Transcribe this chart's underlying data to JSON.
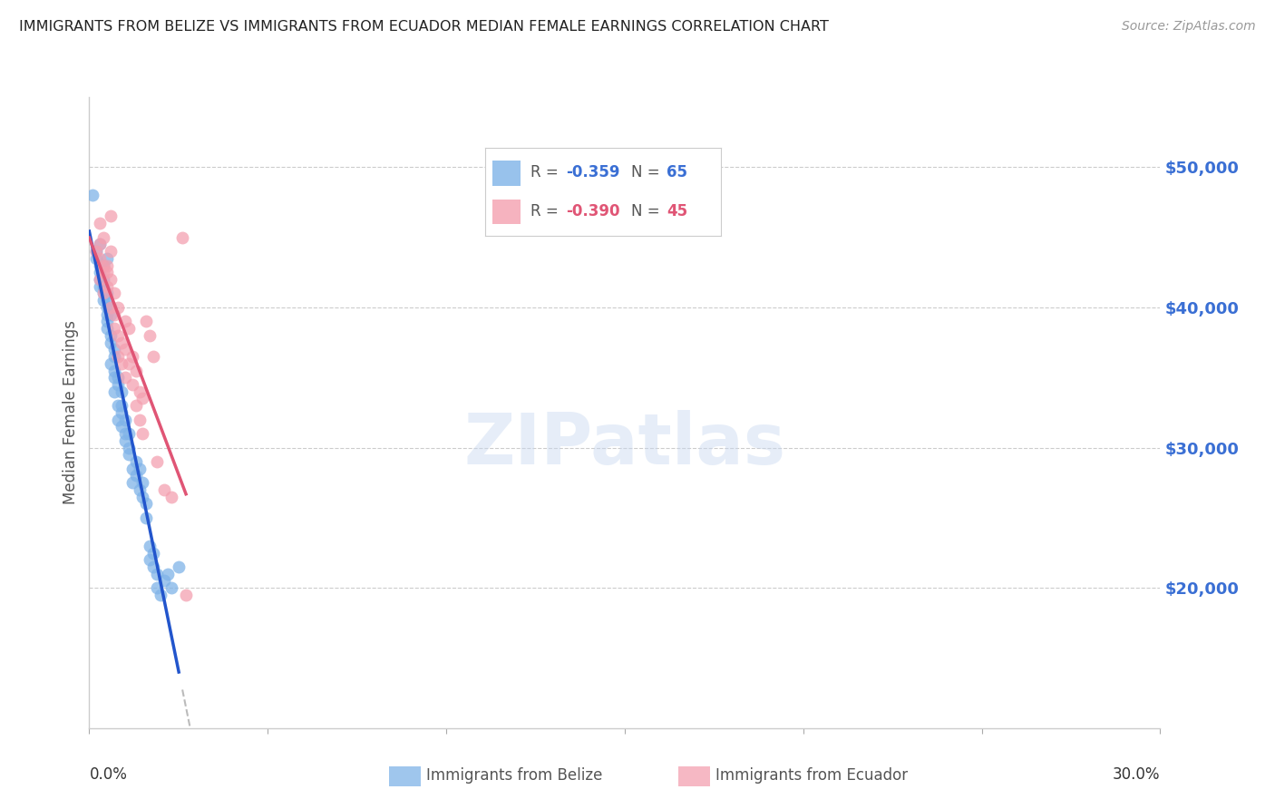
{
  "title": "IMMIGRANTS FROM BELIZE VS IMMIGRANTS FROM ECUADOR MEDIAN FEMALE EARNINGS CORRELATION CHART",
  "source": "Source: ZipAtlas.com",
  "ylabel": "Median Female Earnings",
  "yticks": [
    20000,
    30000,
    40000,
    50000
  ],
  "ytick_labels": [
    "$20,000",
    "$30,000",
    "$40,000",
    "$50,000"
  ],
  "xlim": [
    0.0,
    0.3
  ],
  "ylim": [
    10000,
    55000
  ],
  "legend_line1": "R = -0.359   N = 65",
  "legend_line2": "R = -0.390   N = 45",
  "belize_color": "#7fb3e8",
  "ecuador_color": "#f4a0b0",
  "belize_line_color": "#2255cc",
  "ecuador_line_color": "#e05575",
  "dashed_line_color": "#bbbbbb",
  "watermark": "ZIPatlas",
  "belize_scatter": [
    [
      0.001,
      48000
    ],
    [
      0.002,
      43500
    ],
    [
      0.002,
      44000
    ],
    [
      0.003,
      43000
    ],
    [
      0.003,
      44500
    ],
    [
      0.003,
      42500
    ],
    [
      0.003,
      41500
    ],
    [
      0.003,
      42000
    ],
    [
      0.004,
      41000
    ],
    [
      0.004,
      43000
    ],
    [
      0.004,
      42000
    ],
    [
      0.004,
      40500
    ],
    [
      0.004,
      41500
    ],
    [
      0.005,
      40000
    ],
    [
      0.005,
      41000
    ],
    [
      0.005,
      39500
    ],
    [
      0.005,
      40500
    ],
    [
      0.005,
      39000
    ],
    [
      0.005,
      38500
    ],
    [
      0.005,
      43500
    ],
    [
      0.006,
      38000
    ],
    [
      0.006,
      40000
    ],
    [
      0.006,
      39500
    ],
    [
      0.006,
      37500
    ],
    [
      0.006,
      36000
    ],
    [
      0.007,
      35000
    ],
    [
      0.007,
      36500
    ],
    [
      0.007,
      37000
    ],
    [
      0.007,
      35500
    ],
    [
      0.007,
      34000
    ],
    [
      0.008,
      33000
    ],
    [
      0.008,
      34500
    ],
    [
      0.008,
      32000
    ],
    [
      0.008,
      35000
    ],
    [
      0.009,
      31500
    ],
    [
      0.009,
      32500
    ],
    [
      0.009,
      33000
    ],
    [
      0.009,
      34000
    ],
    [
      0.01,
      30500
    ],
    [
      0.01,
      31000
    ],
    [
      0.01,
      32000
    ],
    [
      0.011,
      29500
    ],
    [
      0.011,
      31000
    ],
    [
      0.011,
      30000
    ],
    [
      0.012,
      28500
    ],
    [
      0.012,
      27500
    ],
    [
      0.013,
      29000
    ],
    [
      0.013,
      28000
    ],
    [
      0.014,
      27000
    ],
    [
      0.014,
      28500
    ],
    [
      0.015,
      26500
    ],
    [
      0.015,
      27500
    ],
    [
      0.016,
      25000
    ],
    [
      0.016,
      26000
    ],
    [
      0.017,
      22000
    ],
    [
      0.017,
      23000
    ],
    [
      0.018,
      21500
    ],
    [
      0.018,
      22500
    ],
    [
      0.019,
      20000
    ],
    [
      0.019,
      21000
    ],
    [
      0.02,
      19500
    ],
    [
      0.021,
      20500
    ],
    [
      0.022,
      21000
    ],
    [
      0.023,
      20000
    ],
    [
      0.025,
      21500
    ]
  ],
  "ecuador_scatter": [
    [
      0.002,
      44000
    ],
    [
      0.003,
      43500
    ],
    [
      0.003,
      42000
    ],
    [
      0.003,
      44500
    ],
    [
      0.003,
      46000
    ],
    [
      0.004,
      45000
    ],
    [
      0.004,
      43000
    ],
    [
      0.004,
      42500
    ],
    [
      0.004,
      41000
    ],
    [
      0.005,
      43000
    ],
    [
      0.005,
      41500
    ],
    [
      0.005,
      42500
    ],
    [
      0.006,
      44000
    ],
    [
      0.006,
      42000
    ],
    [
      0.006,
      46500
    ],
    [
      0.006,
      40000
    ],
    [
      0.007,
      38500
    ],
    [
      0.007,
      39500
    ],
    [
      0.007,
      41000
    ],
    [
      0.008,
      40000
    ],
    [
      0.008,
      38000
    ],
    [
      0.008,
      36500
    ],
    [
      0.009,
      37500
    ],
    [
      0.009,
      36000
    ],
    [
      0.01,
      39000
    ],
    [
      0.01,
      37000
    ],
    [
      0.01,
      35000
    ],
    [
      0.011,
      38500
    ],
    [
      0.011,
      36000
    ],
    [
      0.012,
      36500
    ],
    [
      0.012,
      34500
    ],
    [
      0.013,
      35500
    ],
    [
      0.013,
      33000
    ],
    [
      0.014,
      34000
    ],
    [
      0.014,
      32000
    ],
    [
      0.015,
      33500
    ],
    [
      0.015,
      31000
    ],
    [
      0.016,
      39000
    ],
    [
      0.017,
      38000
    ],
    [
      0.018,
      36500
    ],
    [
      0.019,
      29000
    ],
    [
      0.021,
      27000
    ],
    [
      0.023,
      26500
    ],
    [
      0.026,
      45000
    ],
    [
      0.027,
      19500
    ]
  ]
}
